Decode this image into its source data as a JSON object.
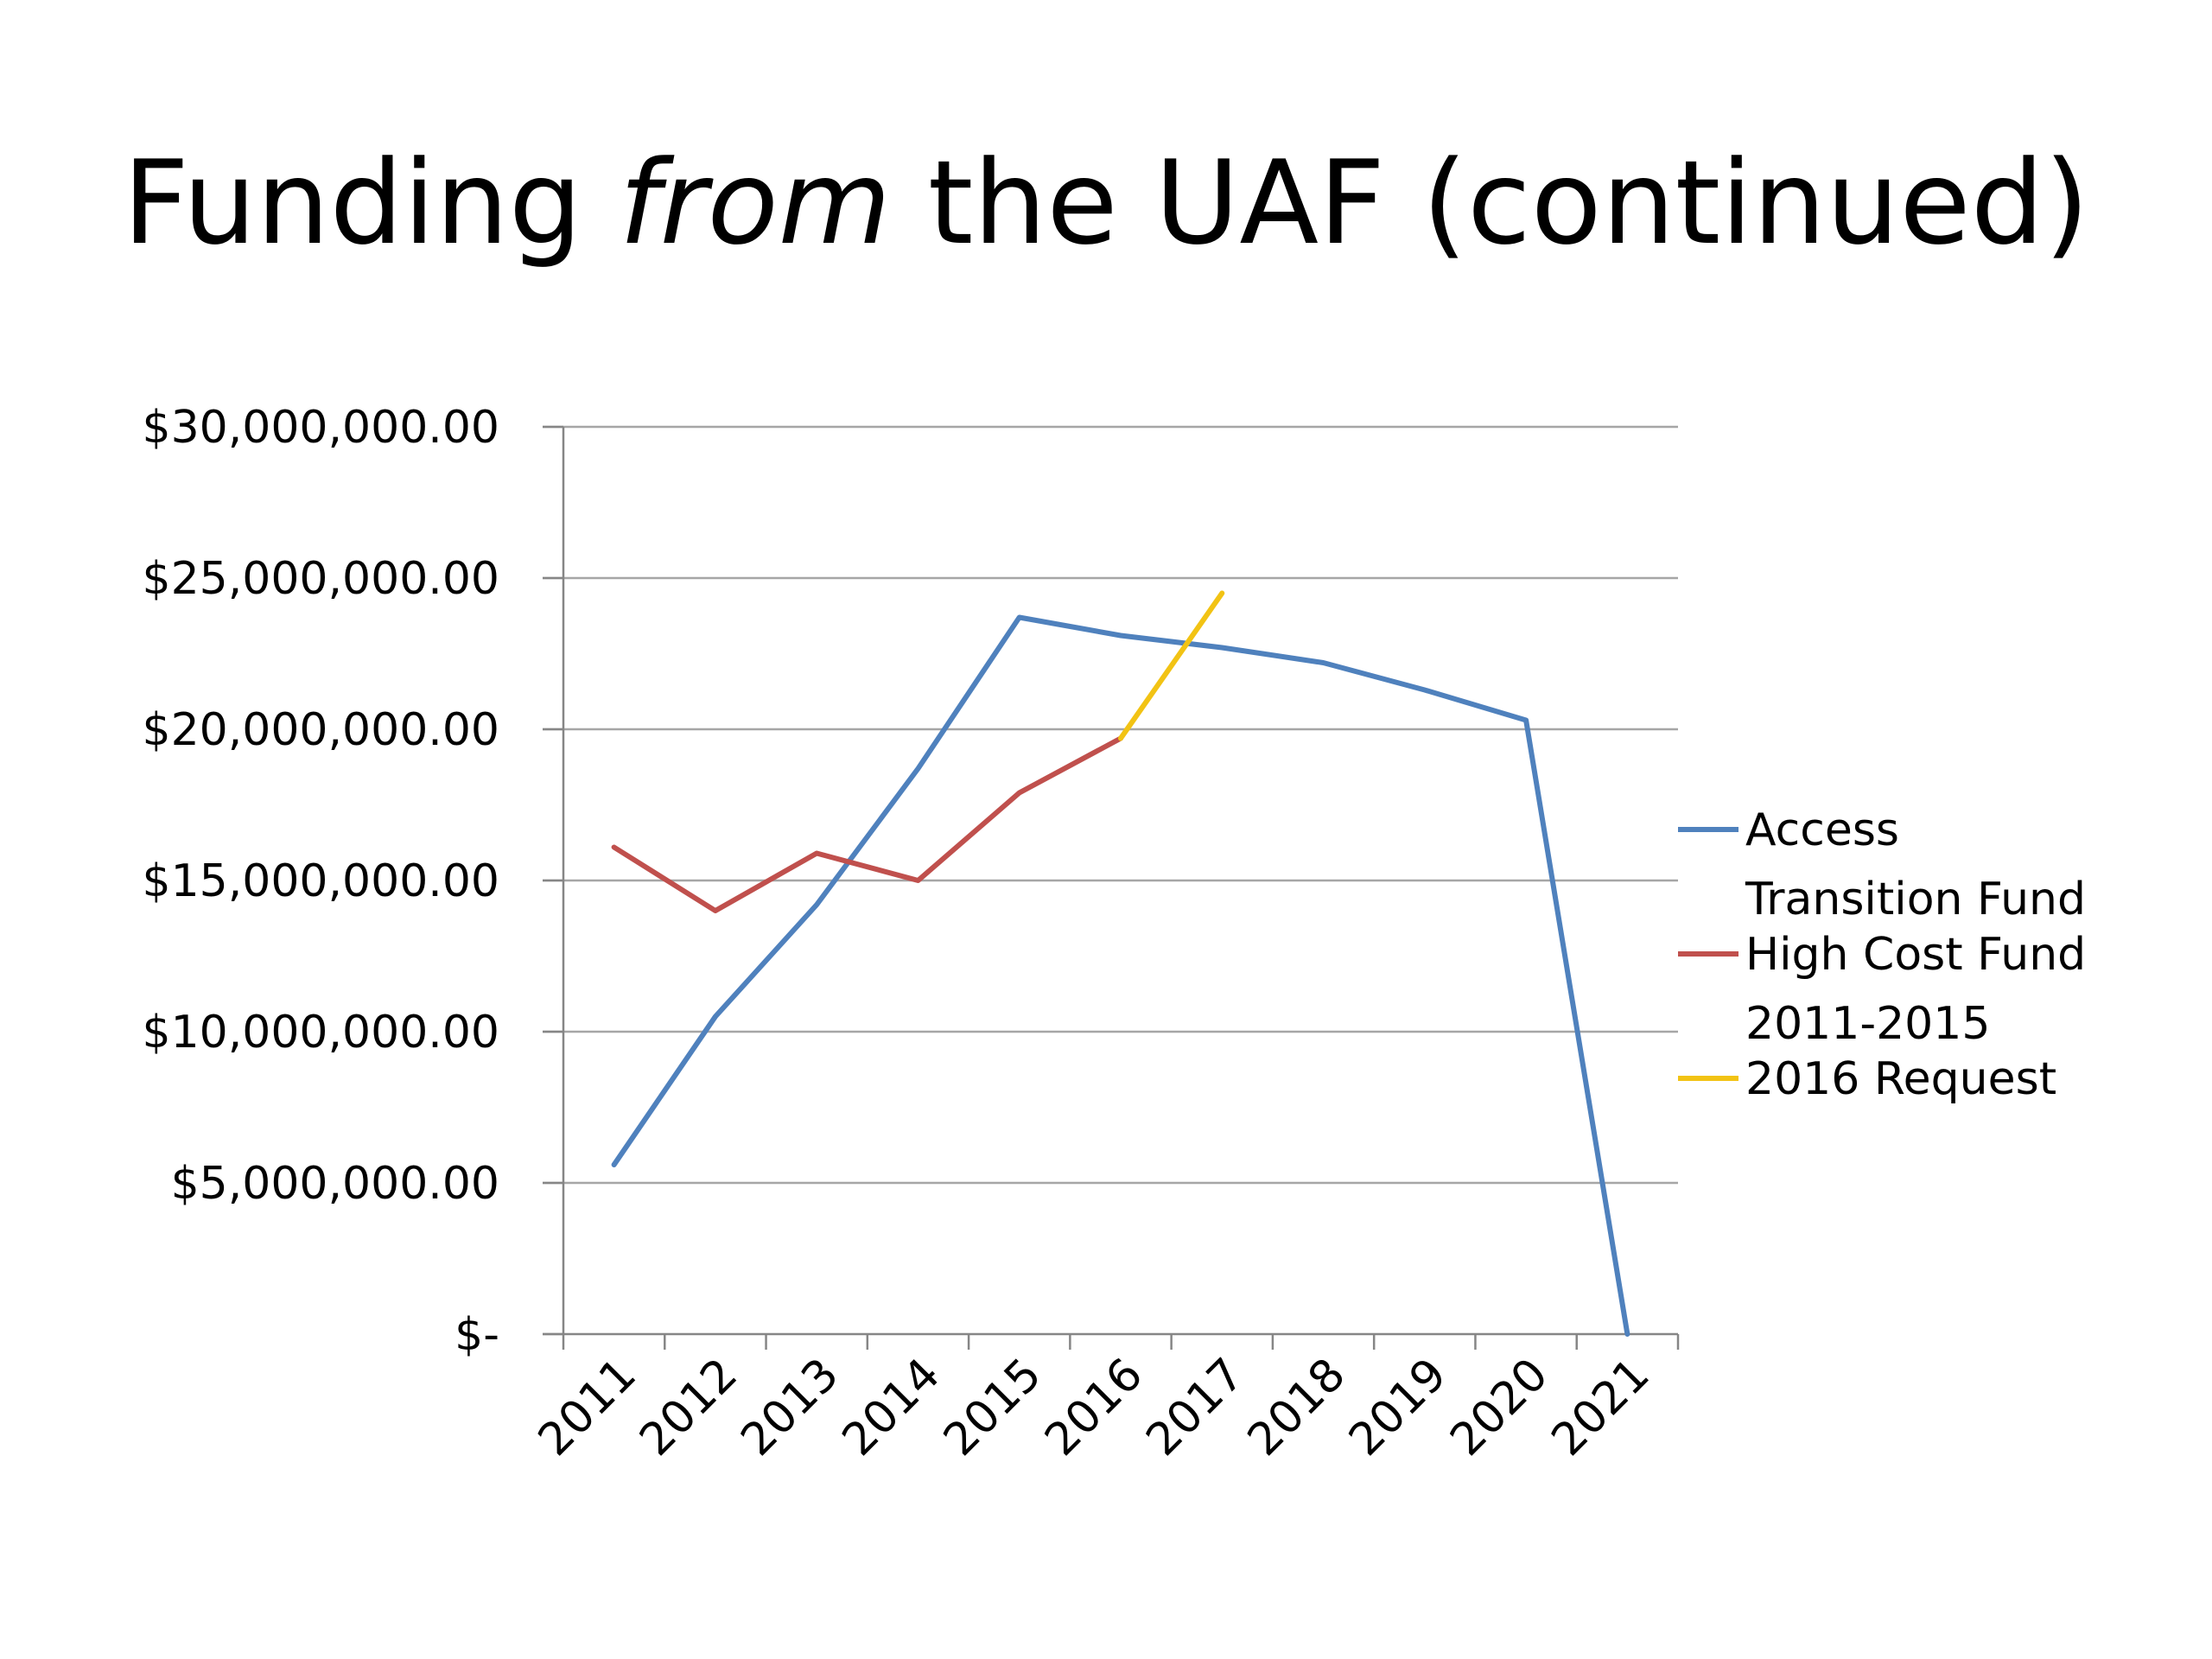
{
  "title": {
    "pre": "Funding ",
    "emphasis": "from",
    "post": " the UAF (continued)"
  },
  "colors": {
    "access_transition": "#4f81bd",
    "high_cost": "#c0504d",
    "request_2016": "#f2c314",
    "grid": "#a6a6a6",
    "axis": "#868686"
  },
  "chart_data": {
    "type": "line",
    "title": "Funding from the UAF (continued)",
    "xlabel": "",
    "ylabel": "",
    "categories": [
      "2011",
      "2012",
      "2013",
      "2014",
      "2015",
      "2016",
      "2017",
      "2018",
      "2019",
      "2020",
      "2021"
    ],
    "y_tick_labels": [
      "$-",
      "$5,000,000.00",
      "$10,000,000.00",
      "$15,000,000.00",
      "$20,000,000.00",
      "$25,000,000.00",
      "$30,000,000.00"
    ],
    "ylim": [
      0,
      30000000
    ],
    "y_step": 5000000,
    "grid": true,
    "legend_position": "right",
    "series": [
      {
        "name_lines": [
          "Access",
          "Transition Fund"
        ],
        "name": "Access Transition Fund",
        "color_key": "access_transition",
        "values": [
          5600000,
          10500000,
          14200000,
          18700000,
          23700000,
          23100000,
          22700000,
          22200000,
          21300000,
          20300000,
          0
        ]
      },
      {
        "name_lines": [
          "High Cost Fund",
          "2011-2015"
        ],
        "name": "High Cost Fund 2011-2015",
        "color_key": "high_cost",
        "values": [
          16100000,
          14000000,
          15900000,
          15000000,
          17900000,
          19700000,
          null,
          null,
          null,
          null,
          null
        ]
      },
      {
        "name_lines": [
          "2016 Request"
        ],
        "name": "2016 Request",
        "color_key": "request_2016",
        "values": [
          null,
          null,
          null,
          null,
          null,
          19700000,
          24500000,
          null,
          null,
          null,
          null
        ]
      }
    ]
  }
}
